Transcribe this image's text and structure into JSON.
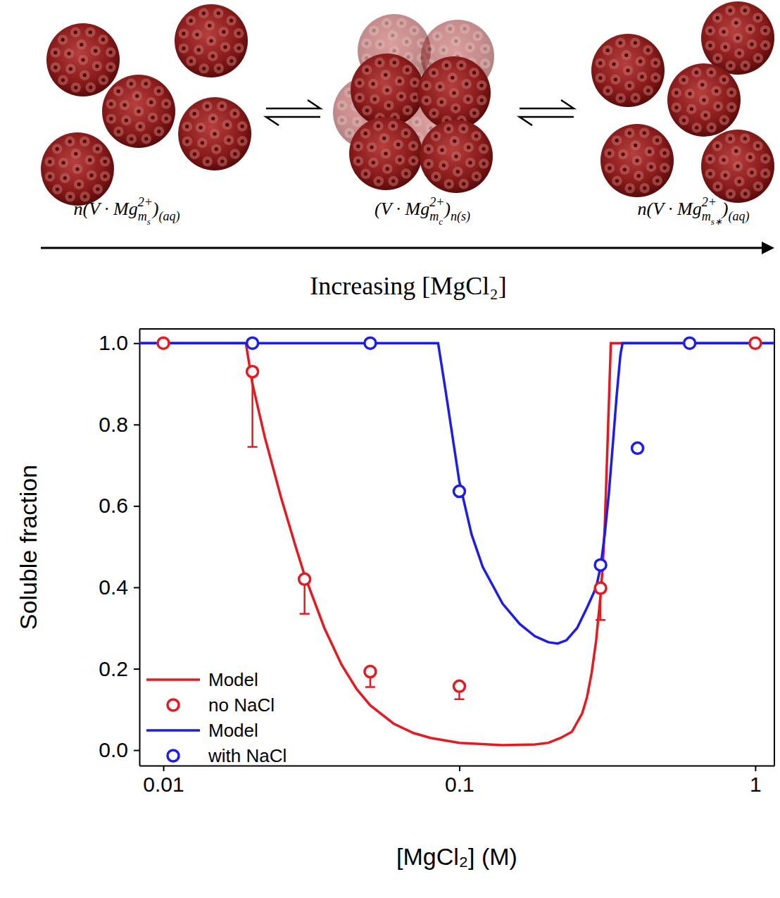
{
  "diagram": {
    "states": [
      {
        "label": [
          {
            "text": "n(V · Mg",
            "style": "normal"
          },
          {
            "text": "2+",
            "style": "sup"
          },
          {
            "text": "m",
            "style": "sub"
          },
          {
            "text": "s",
            "style": "subsub"
          },
          {
            "text": ")",
            "style": "normal"
          },
          {
            "text": "(aq)",
            "style": "sub"
          }
        ]
      },
      {
        "label": [
          {
            "text": "(V · Mg",
            "style": "normal"
          },
          {
            "text": "2+",
            "style": "sup"
          },
          {
            "text": "m",
            "style": "sub"
          },
          {
            "text": "c",
            "style": "subsub"
          },
          {
            "text": ")",
            "style": "normal"
          },
          {
            "text": "n(s)",
            "style": "sub"
          }
        ]
      },
      {
        "label": [
          {
            "text": "n(V · Mg",
            "style": "normal"
          },
          {
            "text": "2+",
            "style": "sup"
          },
          {
            "text": "m",
            "style": "sub"
          },
          {
            "text": "s∗",
            "style": "subsub"
          },
          {
            "text": ")",
            "style": "normal"
          },
          {
            "text": "(aq)",
            "style": "sub"
          }
        ]
      }
    ],
    "arrow_label": "Increasing [MgCl₂]"
  },
  "chart_data": {
    "type": "line",
    "x_label": "[MgCl₂] (M)",
    "y_label": "Soluble fraction",
    "log": "x",
    "grid": false,
    "legend": "lower left",
    "xlim": [
      0.0083,
      1.16
    ],
    "ylim": [
      -0.038,
      1.035
    ],
    "xticks": [
      0.01,
      0.1,
      1
    ],
    "yticks": [
      {
        "value": 0,
        "label": "0.0"
      },
      {
        "value": 0.2,
        "label": "0.2"
      },
      {
        "value": 0.4,
        "label": "0.4"
      },
      {
        "value": 0.6,
        "label": "0.6"
      },
      {
        "value": 0.8,
        "label": "0.8"
      },
      {
        "value": 1,
        "label": "1.0"
      }
    ],
    "series": [
      {
        "name": "Model",
        "type": "line",
        "line_style": "solid",
        "color": "#e8191e",
        "x": [
          0.0083,
          0.019,
          0.02,
          0.022,
          0.025,
          0.028,
          0.03,
          0.035,
          0.04,
          0.045,
          0.05,
          0.06,
          0.07,
          0.08,
          0.1,
          0.14,
          0.18,
          0.2,
          0.22,
          0.24,
          0.26,
          0.27,
          0.28,
          0.29,
          0.3,
          0.305,
          0.31,
          0.315,
          0.32,
          0.325,
          1.16
        ],
        "values": [
          1.0,
          1.0,
          0.9,
          0.77,
          0.62,
          0.5,
          0.43,
          0.3,
          0.21,
          0.15,
          0.11,
          0.065,
          0.042,
          0.03,
          0.018,
          0.012,
          0.014,
          0.018,
          0.03,
          0.045,
          0.09,
          0.13,
          0.19,
          0.27,
          0.38,
          0.45,
          0.55,
          0.7,
          0.85,
          1.0,
          1.0
        ]
      },
      {
        "name": "no NaCl",
        "type": "scatter",
        "marker": "circle",
        "color": "#e8191e",
        "x": [
          0.01,
          0.02,
          0.03,
          0.05,
          0.1,
          0.3,
          1
        ],
        "values": [
          1.0,
          0.93,
          0.42,
          0.193,
          0.157,
          0.398,
          1.0
        ],
        "errors_lower": [
          null,
          0.185,
          0.085,
          0.038,
          0.032,
          0.078,
          null
        ]
      },
      {
        "name": "Model",
        "type": "line",
        "line_style": "solid",
        "color": "#1c1cf0",
        "x": [
          0.0083,
          0.0848,
          0.09,
          0.1,
          0.11,
          0.12,
          0.14,
          0.16,
          0.18,
          0.2,
          0.215,
          0.23,
          0.25,
          0.27,
          0.29,
          0.3,
          0.31,
          0.32,
          0.33,
          0.34,
          0.35,
          0.356,
          1.16
        ],
        "values": [
          1.0,
          1.0,
          0.88,
          0.66,
          0.53,
          0.45,
          0.36,
          0.31,
          0.28,
          0.265,
          0.262,
          0.27,
          0.3,
          0.35,
          0.4,
          0.45,
          0.53,
          0.63,
          0.75,
          0.87,
          0.97,
          1.0,
          1.0
        ]
      },
      {
        "name": "with NaCl",
        "type": "scatter",
        "marker": "circle",
        "color": "#1c1cf0",
        "x": [
          0.02,
          0.05,
          0.1,
          0.3,
          0.4,
          0.6
        ],
        "values": [
          1.0,
          1.0,
          0.636,
          0.455,
          0.742,
          1.0
        ]
      }
    ]
  }
}
